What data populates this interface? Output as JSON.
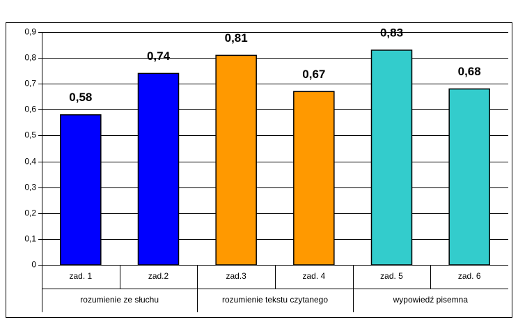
{
  "chart_data": {
    "type": "bar",
    "groups": [
      {
        "name": "rozumienie ze słuchu",
        "color": "#0000ff",
        "categories": [
          "zad. 1",
          "zad.2"
        ],
        "values": [
          0.58,
          0.74
        ],
        "value_labels": [
          "0,58",
          "0,74"
        ]
      },
      {
        "name": "rozumienie tekstu czytanego",
        "color": "#ff9900",
        "categories": [
          "zad.3",
          "zad. 4"
        ],
        "values": [
          0.81,
          0.67
        ],
        "value_labels": [
          "0,81",
          "0,67"
        ]
      },
      {
        "name": "wypowiedź pisemna",
        "color": "#33cccc",
        "categories": [
          "zad. 5",
          "zad. 6"
        ],
        "values": [
          0.83,
          0.68
        ],
        "value_labels": [
          "0,83",
          "0,68"
        ]
      }
    ],
    "ylim": [
      0,
      0.9
    ],
    "yticks": [
      0,
      {
        "value": 0.1,
        "label": "0,1"
      },
      {
        "value": 0.2,
        "label": "0,2"
      },
      {
        "value": 0.3,
        "label": "0,3"
      },
      {
        "value": 0.4,
        "label": "0,4"
      },
      {
        "value": 0.5,
        "label": "0,5"
      },
      {
        "value": 0.6,
        "label": "0,6"
      },
      {
        "value": 0.7,
        "label": "0,7"
      },
      {
        "value": 0.8,
        "label": "0,8"
      },
      {
        "value": 0.9,
        "label": "0,9"
      }
    ],
    "grid": true
  }
}
